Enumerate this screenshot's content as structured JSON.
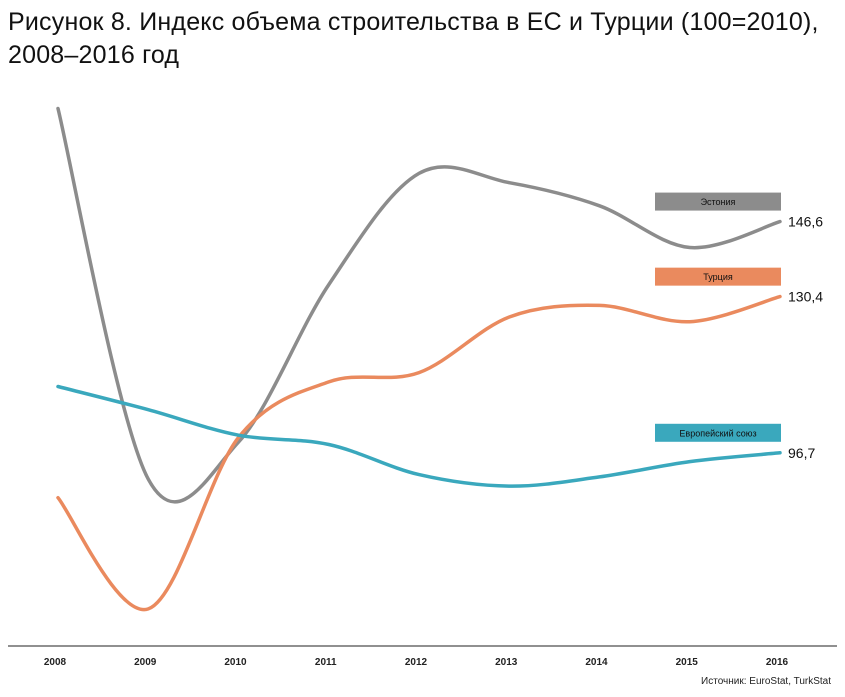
{
  "title": "Рисунок 8. Индекс объема строительства в ЕС и Турции (100=2010), 2008–2016 год",
  "source": "Источник: EuroStat, TurkStat",
  "chart_data": {
    "type": "line",
    "title": "Рисунок 8. Индекс объема строительства в ЕС и Турции (100=2010), 2008–2016 год",
    "xlabel": "",
    "ylabel": "",
    "x": [
      "2008",
      "2009",
      "2010",
      "2011",
      "2012",
      "2013",
      "2014",
      "2015",
      "2016"
    ],
    "ylim": [
      55,
      175
    ],
    "grid": false,
    "legend": "right, labels above series end",
    "series": [
      {
        "name": "Эстония",
        "color": "#8c8c8c",
        "values": [
          171,
          91,
          99,
          133,
          157,
          155,
          150,
          141,
          146.6
        ],
        "end_label": "146,6"
      },
      {
        "name": "Турция",
        "color": "#ea8a5e",
        "values": [
          87,
          63,
          100,
          112,
          114,
          126,
          128.5,
          125,
          130.4
        ],
        "end_label": "130,4"
      },
      {
        "name": "Европейский союз",
        "color": "#3aa8bd",
        "values": [
          111,
          106,
          100.5,
          98.5,
          92,
          89.5,
          91.5,
          94.8,
          96.7
        ],
        "end_label": "96,7"
      }
    ]
  }
}
